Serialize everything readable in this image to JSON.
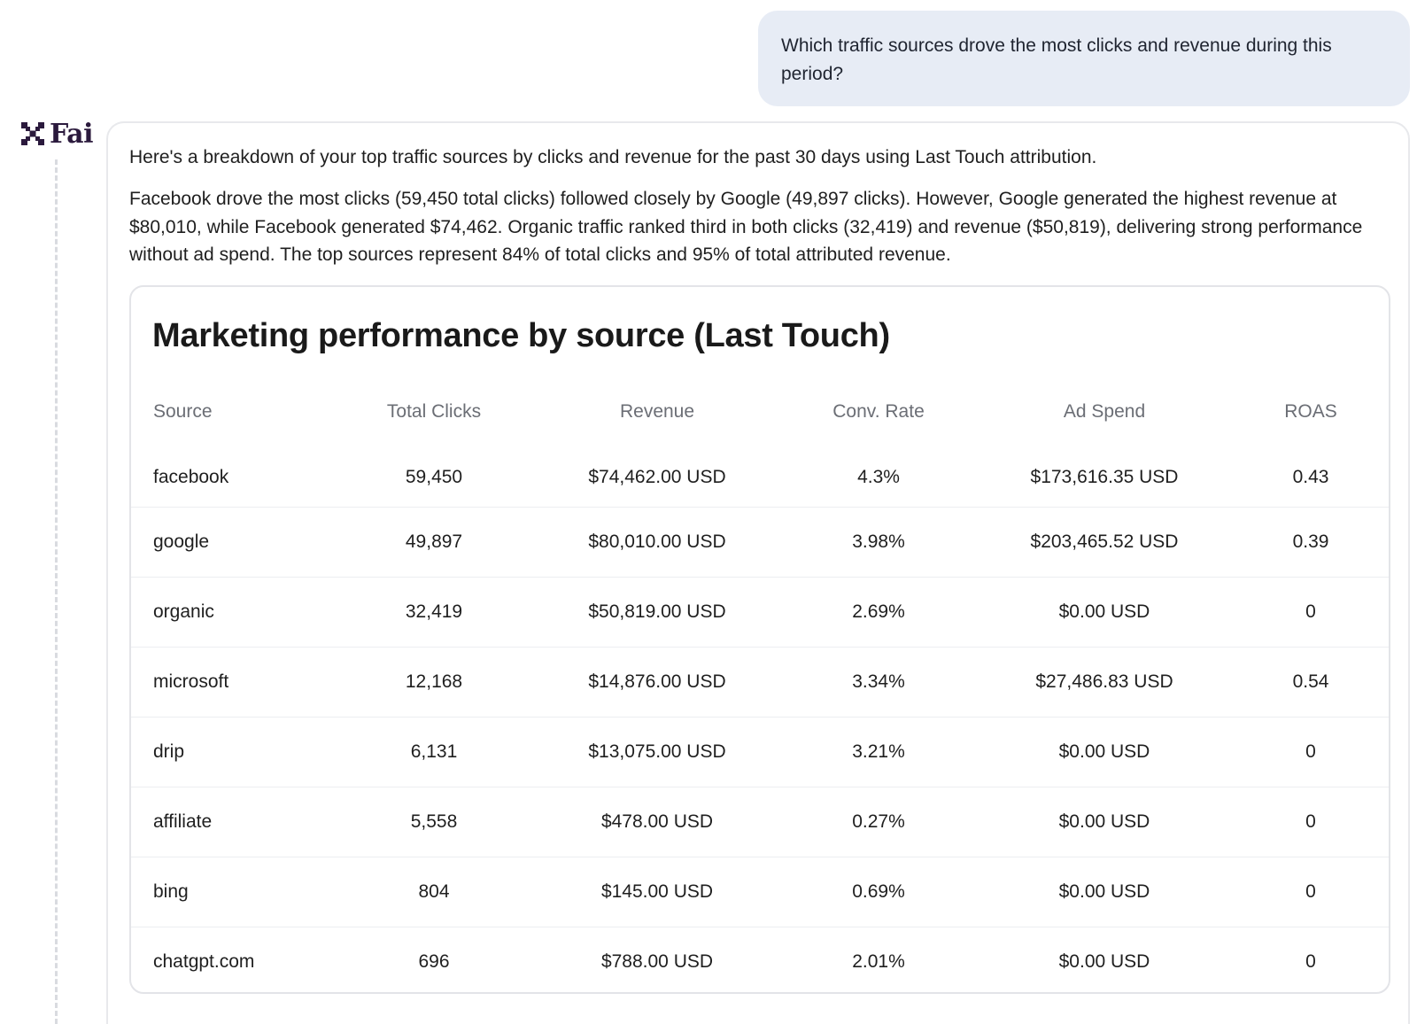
{
  "user_message": "Which traffic sources drove the most clicks and revenue during this period?",
  "brand": {
    "name": "Fai",
    "logo_icon": "x-grid-logo-icon"
  },
  "assistant": {
    "intro": "Here's a breakdown of your top traffic sources by clicks and revenue for the past 30 days using Last Touch attribution.",
    "summary": "Facebook drove the most clicks (59,450 total clicks) followed closely by Google (49,897 clicks). However, Google generated the highest revenue at $80,010, while Facebook generated $74,462. Organic traffic ranked third in both clicks (32,419) and revenue ($50,819), delivering strong performance without ad spend. The top sources represent 84% of total clicks and 95% of total attributed revenue."
  },
  "table": {
    "title": "Marketing performance by source (Last Touch)",
    "columns": [
      "Source",
      "Total Clicks",
      "Revenue",
      "Conv. Rate",
      "Ad Spend",
      "ROAS"
    ],
    "rows": [
      [
        "facebook",
        "59,450",
        "$74,462.00 USD",
        "4.3%",
        "$173,616.35 USD",
        "0.43"
      ],
      [
        "google",
        "49,897",
        "$80,010.00 USD",
        "3.98%",
        "$203,465.52 USD",
        "0.39"
      ],
      [
        "organic",
        "32,419",
        "$50,819.00 USD",
        "2.69%",
        "$0.00 USD",
        "0"
      ],
      [
        "microsoft",
        "12,168",
        "$14,876.00 USD",
        "3.34%",
        "$27,486.83 USD",
        "0.54"
      ],
      [
        "drip",
        "6,131",
        "$13,075.00 USD",
        "3.21%",
        "$0.00 USD",
        "0"
      ],
      [
        "affiliate",
        "5,558",
        "$478.00 USD",
        "0.27%",
        "$0.00 USD",
        "0"
      ],
      [
        "bing",
        "804",
        "$145.00 USD",
        "0.69%",
        "$0.00 USD",
        "0"
      ],
      [
        "chatgpt.com",
        "696",
        "$788.00 USD",
        "2.01%",
        "$0.00 USD",
        "0"
      ]
    ]
  },
  "colors": {
    "user_bubble": "#e7ecf5",
    "brand": "#2b1a3d",
    "header_text": "#6b6e75",
    "border": "#e3e4e8"
  }
}
